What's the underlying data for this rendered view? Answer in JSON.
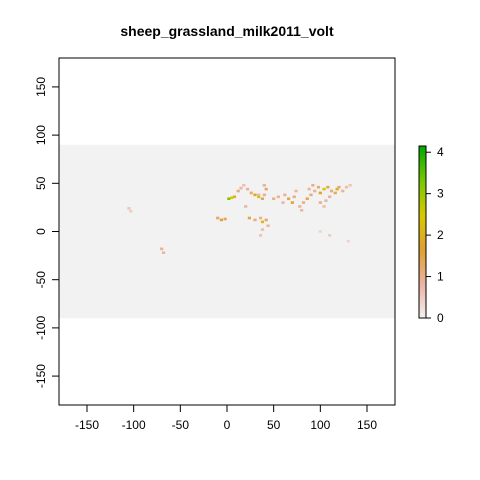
{
  "chart_data": {
    "type": "heatmap",
    "title": "sheep_grassland_milk2011_volt",
    "xlabel": "",
    "ylabel": "",
    "xlim": [
      -180,
      180
    ],
    "ylim": [
      -180,
      180
    ],
    "xticks": [
      "-150",
      "-100",
      "-50",
      "0",
      "50",
      "100",
      "150"
    ],
    "xtick_values": [
      -150,
      -100,
      -50,
      0,
      50,
      100,
      150
    ],
    "yticks": [
      "150",
      "100",
      "50",
      "0",
      "-50",
      "-100",
      "-150"
    ],
    "ytick_values": [
      150,
      100,
      50,
      0,
      -50,
      -100,
      -150
    ],
    "raster_extent": {
      "x": [
        -180,
        180
      ],
      "y": [
        -90,
        90
      ]
    },
    "background_color": "#f2f2f2",
    "colorbar": {
      "range": [
        0,
        4.15
      ],
      "ticks": [
        "0",
        "1",
        "2",
        "3",
        "4"
      ],
      "tick_values": [
        0,
        1,
        2,
        3,
        4
      ],
      "colors": [
        "#f2f2f2",
        "#ebb3a3",
        "#e0a030",
        "#d8c800",
        "#78c800",
        "#00a800"
      ]
    },
    "cells": [
      {
        "x": -105,
        "y": 24,
        "v": 0.6
      },
      {
        "x": -103,
        "y": 21,
        "v": 0.5
      },
      {
        "x": -70,
        "y": -18,
        "v": 0.9
      },
      {
        "x": -68,
        "y": -22,
        "v": 0.8
      },
      {
        "x": -10,
        "y": 14,
        "v": 1.3
      },
      {
        "x": -6,
        "y": 12,
        "v": 1.6
      },
      {
        "x": -2,
        "y": 13,
        "v": 1.4
      },
      {
        "x": 2,
        "y": 34,
        "v": 3.3
      },
      {
        "x": 5,
        "y": 35,
        "v": 2.4
      },
      {
        "x": 8,
        "y": 36,
        "v": 2.0
      },
      {
        "x": 12,
        "y": 42,
        "v": 1.1
      },
      {
        "x": 15,
        "y": 45,
        "v": 0.8
      },
      {
        "x": 18,
        "y": 48,
        "v": 0.7
      },
      {
        "x": 22,
        "y": 44,
        "v": 0.9
      },
      {
        "x": 26,
        "y": 40,
        "v": 1.2
      },
      {
        "x": 30,
        "y": 38,
        "v": 1.8
      },
      {
        "x": 34,
        "y": 36,
        "v": 2.6
      },
      {
        "x": 38,
        "y": 34,
        "v": 1.4
      },
      {
        "x": 40,
        "y": 38,
        "v": 1.0
      },
      {
        "x": 42,
        "y": 44,
        "v": 1.3
      },
      {
        "x": 40,
        "y": 48,
        "v": 0.9
      },
      {
        "x": 20,
        "y": 26,
        "v": 0.8
      },
      {
        "x": 24,
        "y": 14,
        "v": 1.5
      },
      {
        "x": 30,
        "y": 12,
        "v": 1.1
      },
      {
        "x": 36,
        "y": 14,
        "v": 0.9
      },
      {
        "x": 38,
        "y": 10,
        "v": 2.2
      },
      {
        "x": 42,
        "y": 12,
        "v": 1.3
      },
      {
        "x": 44,
        "y": 6,
        "v": 0.8
      },
      {
        "x": 38,
        "y": 2,
        "v": 0.7
      },
      {
        "x": 36,
        "y": -4,
        "v": 0.6
      },
      {
        "x": 34,
        "y": 38,
        "v": 0.8
      },
      {
        "x": 50,
        "y": 34,
        "v": 1.0
      },
      {
        "x": 55,
        "y": 36,
        "v": 0.9
      },
      {
        "x": 60,
        "y": 30,
        "v": 0.8
      },
      {
        "x": 62,
        "y": 38,
        "v": 0.9
      },
      {
        "x": 66,
        "y": 34,
        "v": 1.4
      },
      {
        "x": 70,
        "y": 30,
        "v": 1.8
      },
      {
        "x": 72,
        "y": 36,
        "v": 1.1
      },
      {
        "x": 74,
        "y": 42,
        "v": 0.8
      },
      {
        "x": 78,
        "y": 26,
        "v": 0.9
      },
      {
        "x": 80,
        "y": 22,
        "v": 0.8
      },
      {
        "x": 82,
        "y": 30,
        "v": 1.0
      },
      {
        "x": 86,
        "y": 34,
        "v": 1.4
      },
      {
        "x": 90,
        "y": 38,
        "v": 1.1
      },
      {
        "x": 94,
        "y": 42,
        "v": 0.9
      },
      {
        "x": 88,
        "y": 44,
        "v": 0.8
      },
      {
        "x": 92,
        "y": 48,
        "v": 1.0
      },
      {
        "x": 98,
        "y": 46,
        "v": 1.2
      },
      {
        "x": 100,
        "y": 40,
        "v": 1.7
      },
      {
        "x": 104,
        "y": 44,
        "v": 2.4
      },
      {
        "x": 108,
        "y": 46,
        "v": 1.4
      },
      {
        "x": 112,
        "y": 42,
        "v": 1.1
      },
      {
        "x": 116,
        "y": 40,
        "v": 1.3
      },
      {
        "x": 118,
        "y": 44,
        "v": 2.0
      },
      {
        "x": 120,
        "y": 46,
        "v": 1.2
      },
      {
        "x": 124,
        "y": 42,
        "v": 0.9
      },
      {
        "x": 128,
        "y": 46,
        "v": 0.7
      },
      {
        "x": 132,
        "y": 48,
        "v": 0.6
      },
      {
        "x": 110,
        "y": 36,
        "v": 0.9
      },
      {
        "x": 106,
        "y": 32,
        "v": 0.8
      },
      {
        "x": 104,
        "y": 26,
        "v": 0.7
      },
      {
        "x": 100,
        "y": 30,
        "v": 1.0
      },
      {
        "x": 100,
        "y": 0,
        "v": 0.4
      },
      {
        "x": 110,
        "y": -4,
        "v": 0.5
      },
      {
        "x": 130,
        "y": -10,
        "v": 0.4
      }
    ]
  }
}
